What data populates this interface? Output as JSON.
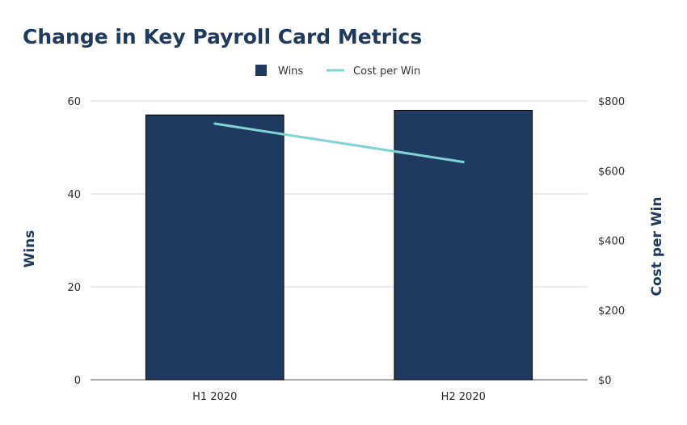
{
  "chart_data": {
    "type": "bar",
    "title": "Change in Key Payroll Card Metrics",
    "categories": [
      "H1 2020",
      "H2 2020"
    ],
    "series": [
      {
        "name": "Wins",
        "type": "bar",
        "axis": "left",
        "values": [
          57,
          58
        ]
      },
      {
        "name": "Cost per Win",
        "type": "line",
        "axis": "right",
        "values": [
          735,
          625
        ]
      }
    ],
    "ylabel": "Wins",
    "y2label": "Cost per Win",
    "ylim": [
      0,
      60
    ],
    "y2lim": [
      0,
      800
    ],
    "yticks": [
      "0",
      "20",
      "40",
      "60"
    ],
    "y2ticks": [
      "$0",
      "$200",
      "$400",
      "$600",
      "$800"
    ],
    "grid": true,
    "legend_position": "top-center",
    "colors": {
      "bar": "#1f3a5f",
      "line": "#7fd3d3",
      "grid": "#d9d9d9",
      "title": "#1f3a5f"
    }
  }
}
